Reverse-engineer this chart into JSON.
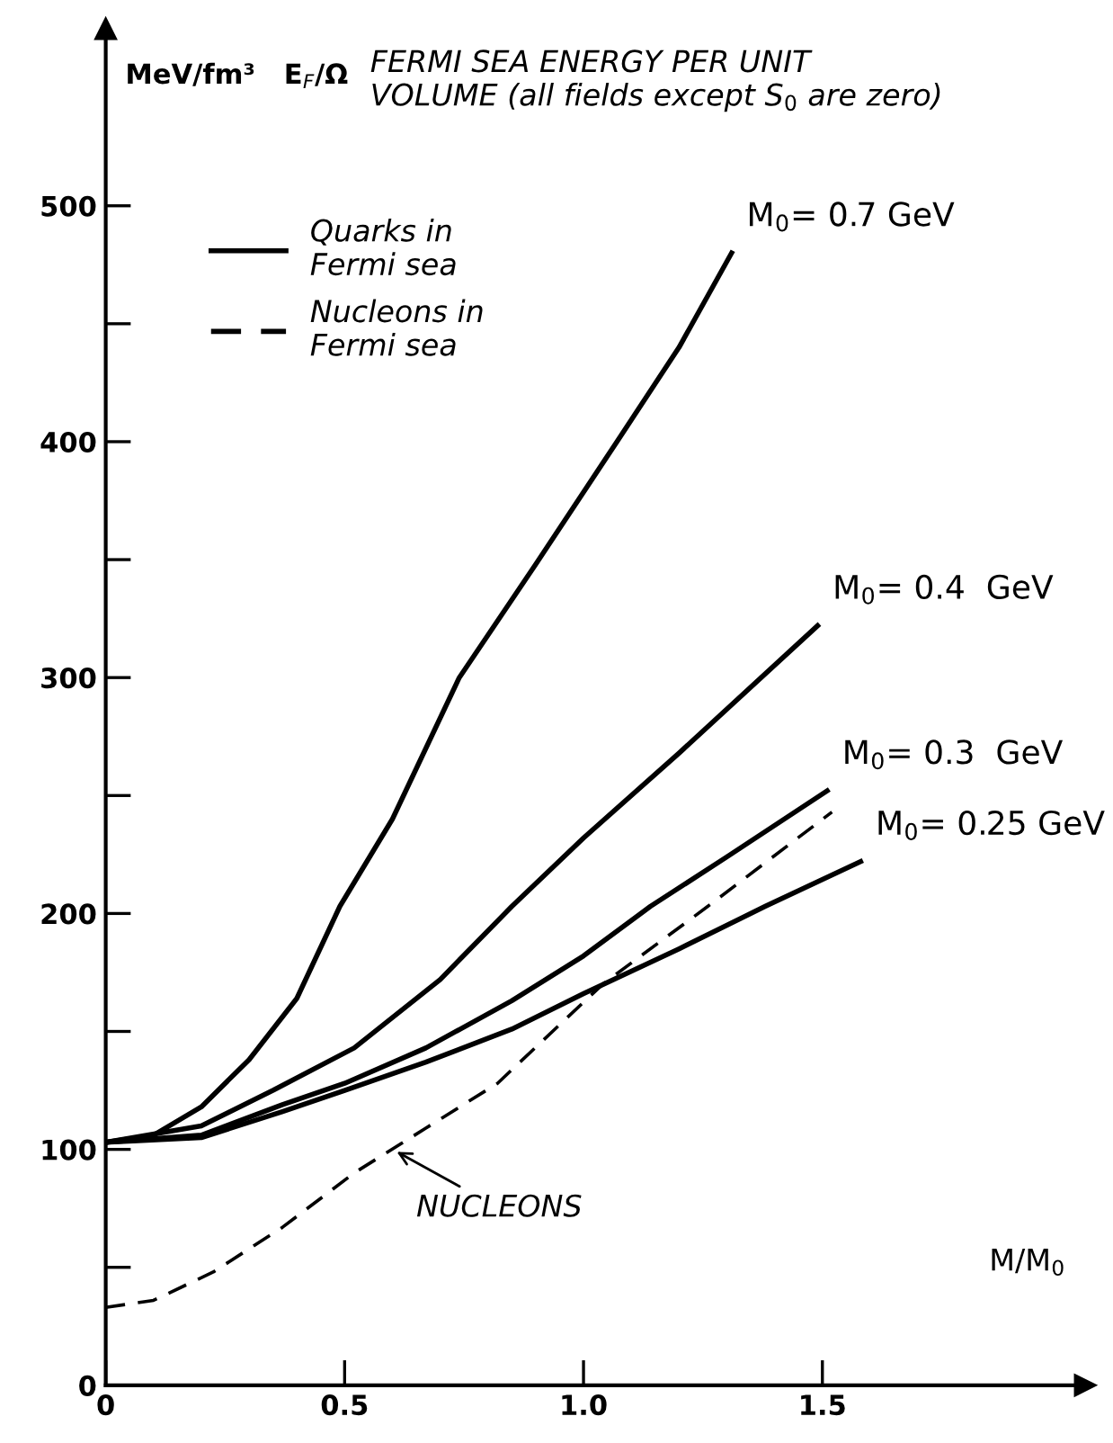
{
  "chart_data": {
    "type": "line",
    "title": "FERMI SEA ENERGY PER UNIT\nVOLUME (all fields except S$_{0}$ are zero)",
    "ylabel": "MeV/fm³   E$_{F}$/Ω",
    "xlabel": "M/M$_{0}$",
    "xlim": [
      0,
      2.05
    ],
    "ylim": [
      0,
      575
    ],
    "xticks": [
      0,
      0.5,
      {
        "value": 1.0,
        "label": "1.0"
      },
      1.5
    ],
    "yticks": [
      0,
      {
        "value": 50,
        "label": null
      },
      100,
      {
        "value": 150,
        "label": null
      },
      200,
      {
        "value": 250,
        "label": null
      },
      300,
      {
        "value": 350,
        "label": null
      },
      400,
      {
        "value": 450,
        "label": null
      },
      500
    ],
    "grid": false,
    "legend": "top left",
    "marker": "none",
    "series": [
      {
        "name": "Quarks in\nFermi sea",
        "color": "#000000",
        "line_style": "solid",
        "x": [
          0,
          0.1,
          0.2,
          0.3,
          0.4,
          0.49,
          0.6,
          0.74,
          0.9,
          1.07,
          1.2,
          1.31
        ],
        "values": [
          103,
          106,
          118,
          138,
          164,
          203,
          240,
          300,
          348,
          400,
          440,
          480
        ]
      },
      {
        "color": "#000000",
        "line_style": "solid",
        "x": [
          0,
          0.2,
          0.35,
          0.52,
          0.7,
          0.85,
          1.0,
          1.2,
          1.49
        ],
        "values": [
          103,
          110,
          125,
          143,
          172,
          203,
          232,
          268,
          322
        ]
      },
      {
        "color": "#000000",
        "line_style": "solid",
        "x": [
          0,
          0.2,
          0.37,
          0.5,
          0.67,
          0.85,
          1.0,
          1.14,
          1.3,
          1.51
        ],
        "values": [
          103,
          106,
          119,
          128,
          143,
          163,
          182,
          203,
          224,
          252
        ]
      },
      {
        "color": "#000000",
        "line_style": "solid",
        "x": [
          0,
          0.2,
          0.37,
          0.5,
          0.67,
          0.85,
          1.0,
          1.2,
          1.38,
          1.58
        ],
        "values": [
          103,
          105,
          116,
          125,
          137,
          151,
          166,
          185,
          203,
          222
        ]
      },
      {
        "name": "Nucleons in\nFermi sea",
        "color": "#000000",
        "line_style": "dashed",
        "x": [
          0,
          0.1,
          0.225,
          0.37,
          0.52,
          0.67,
          0.82,
          1.04,
          1.26,
          1.52
        ],
        "values": [
          33,
          36,
          48,
          67,
          90,
          109,
          128,
          170,
          203,
          243
        ]
      }
    ],
    "annotations": [
      {
        "text": "NUCLEONS",
        "x": 0.6,
        "y": 100
      },
      {
        "text": "M$_{0}$= 0.7 GeV",
        "x": 1.31,
        "y": 480
      },
      {
        "text": "M$_{0}$= 0.4  GeV",
        "x": 1.49,
        "y": 322
      },
      {
        "text": "M$_{0}$= 0.3  GeV",
        "x": 1.51,
        "y": 252
      },
      {
        "text": "M$_{0}$= 0.25 GeV",
        "x": 1.58,
        "y": 222
      }
    ]
  }
}
